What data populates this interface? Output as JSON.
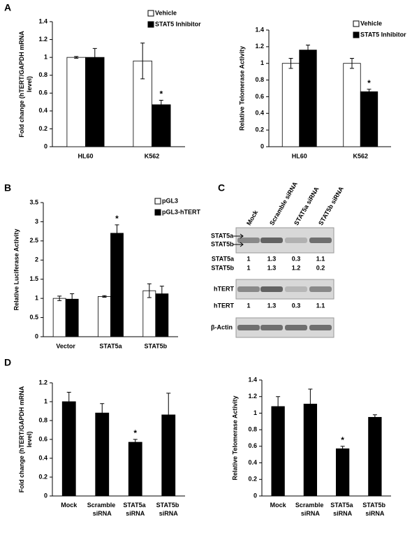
{
  "panels": [
    "A",
    "B",
    "C",
    "D"
  ],
  "chart_data": [
    {
      "type": "bar",
      "ylabel": [
        "Fold change (hTERT/GAPDH mRNA",
        "level)"
      ],
      "categories": [
        "HL60",
        "K562"
      ],
      "series": [
        {
          "name": "Vehicle",
          "color": "#ffffff",
          "values": [
            1.0,
            0.96
          ],
          "errors": [
            0.01,
            0.2
          ],
          "significance": [
            null,
            null
          ]
        },
        {
          "name": "STAT5 Inhibitor",
          "color": "#000000",
          "values": [
            1.0,
            0.47
          ],
          "errors": [
            0.1,
            0.05
          ],
          "significance": [
            null,
            "*"
          ]
        }
      ],
      "ylim": [
        0,
        1.4
      ],
      "yticks": [
        0,
        0.2,
        0.4,
        0.6,
        0.8,
        1,
        1.2,
        1.4
      ],
      "legend": "upper right",
      "grid": false
    },
    {
      "type": "bar",
      "ylabel": [
        "Relative Telomerase Activity"
      ],
      "categories": [
        "HL60",
        "K562"
      ],
      "series": [
        {
          "name": "Vehicle",
          "color": "#ffffff",
          "values": [
            1.0,
            1.0
          ],
          "errors": [
            0.06,
            0.06
          ],
          "significance": [
            null,
            null
          ]
        },
        {
          "name": "STAT5 Inhibitor",
          "color": "#000000",
          "values": [
            1.16,
            0.66
          ],
          "errors": [
            0.06,
            0.03
          ],
          "significance": [
            null,
            "*"
          ]
        }
      ],
      "ylim": [
        0,
        1.4
      ],
      "yticks": [
        0,
        0.2,
        0.4,
        0.6,
        0.8,
        1,
        1.2,
        1.4
      ],
      "legend": "upper right",
      "grid": false
    },
    {
      "type": "bar",
      "ylabel": [
        "Relative Luciferase Activity"
      ],
      "categories": [
        "Vector",
        "STAT5a",
        "STAT5b"
      ],
      "series": [
        {
          "name": "pGL3",
          "color": "#ffffff",
          "values": [
            1.0,
            1.05,
            1.2
          ],
          "errors": [
            0.06,
            0.02,
            0.18
          ],
          "significance": [
            null,
            null,
            null
          ]
        },
        {
          "name": "pGL3-hTERT",
          "color": "#000000",
          "values": [
            0.98,
            2.7,
            1.12
          ],
          "errors": [
            0.14,
            0.22,
            0.2
          ],
          "significance": [
            null,
            "*",
            null
          ]
        }
      ],
      "ylim": [
        0,
        3.5
      ],
      "yticks": [
        0,
        0.5,
        1,
        1.5,
        2,
        2.5,
        3,
        3.5
      ],
      "legend": "upper right",
      "grid": false
    },
    {
      "type": "bar",
      "ylabel": [
        "Fold change (hTERT/GAPDH mRNA",
        "level)"
      ],
      "categories": [
        "Mock",
        "Scramble siRNA",
        "STAT5a siRNA",
        "STAT5b siRNA"
      ],
      "series": [
        {
          "color": "#000000",
          "values": [
            1.0,
            0.88,
            0.57,
            0.86
          ],
          "errors": [
            0.1,
            0.1,
            0.03,
            0.23
          ],
          "significance": [
            null,
            null,
            "*",
            null
          ]
        }
      ],
      "ylim": [
        0,
        1.2
      ],
      "yticks": [
        0,
        0.2,
        0.4,
        0.6,
        0.8,
        1,
        1.2
      ],
      "grid": false
    },
    {
      "type": "bar",
      "ylabel": [
        "Relative Telomerase Activity"
      ],
      "categories": [
        "Mock",
        "Scramble siRNA",
        "STAT5a siRNA",
        "STAT5b siRNA"
      ],
      "series": [
        {
          "color": "#000000",
          "values": [
            1.08,
            1.11,
            0.57,
            0.95
          ],
          "errors": [
            0.12,
            0.18,
            0.03,
            0.03
          ],
          "significance": [
            null,
            null,
            "*",
            null
          ]
        }
      ],
      "ylim": [
        0,
        1.4
      ],
      "yticks": [
        0,
        0.2,
        0.4,
        0.6,
        0.8,
        1,
        1.2,
        1.4
      ],
      "grid": false
    }
  ],
  "blot": {
    "lanes": [
      "Mock",
      "Scramble siRNA",
      "STAT5a siRNA",
      "STAT5b siRNA"
    ],
    "band_labels": [
      "STAT5a",
      "STAT5b"
    ],
    "quant": [
      {
        "label": "STAT5a",
        "values": [
          1,
          1.3,
          0.3,
          1.1
        ]
      },
      {
        "label": "STAT5b",
        "values": [
          1,
          1.3,
          1.2,
          0.2
        ]
      }
    ],
    "htert": {
      "label": "hTERT",
      "blot_label": "hTERT",
      "values": [
        1,
        1.3,
        0.3,
        1.1
      ]
    },
    "actin": "β-Actin"
  }
}
